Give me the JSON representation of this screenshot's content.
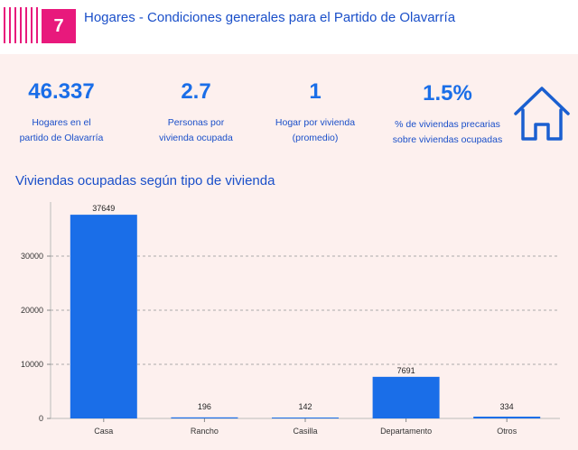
{
  "header": {
    "number": "7",
    "title": "Hogares - Condiciones generales para el Partido de Olavarría"
  },
  "stats": [
    {
      "value": "46.337",
      "label_line1": "Hogares en el",
      "label_line2": "partido de Olavarría"
    },
    {
      "value": "2.7",
      "label_line1": "Personas por",
      "label_line2": "vivienda ocupada"
    },
    {
      "value": "1",
      "label_line1": "Hogar por vivienda",
      "label_line2": "(promedio)"
    },
    {
      "value": "1.5%",
      "label_line1": "% de viviendas precarias",
      "label_line2": "sobre viviendas ocupadas"
    }
  ],
  "icon": "house-icon",
  "colors": {
    "accent": "#e8197c",
    "bar": "#1a6ee8",
    "text": "#1a4fc9",
    "panel": "#fdf0ee"
  },
  "chart_data": {
    "type": "bar",
    "title": "Viviendas ocupadas según tipo de vivienda",
    "categories": [
      "Casa",
      "Rancho",
      "Casilla",
      "Departamento",
      "Otros"
    ],
    "values": [
      37649,
      196,
      142,
      7691,
      334
    ],
    "data_labels": [
      "37649",
      "196",
      "142",
      "7691",
      "334"
    ],
    "yticks": [
      0,
      10000,
      20000,
      30000
    ],
    "ytick_labels": [
      "0",
      "10000",
      "20000",
      "30000"
    ],
    "ylim": [
      0,
      40000
    ],
    "xlabel": "",
    "ylabel": "",
    "grid": true
  }
}
